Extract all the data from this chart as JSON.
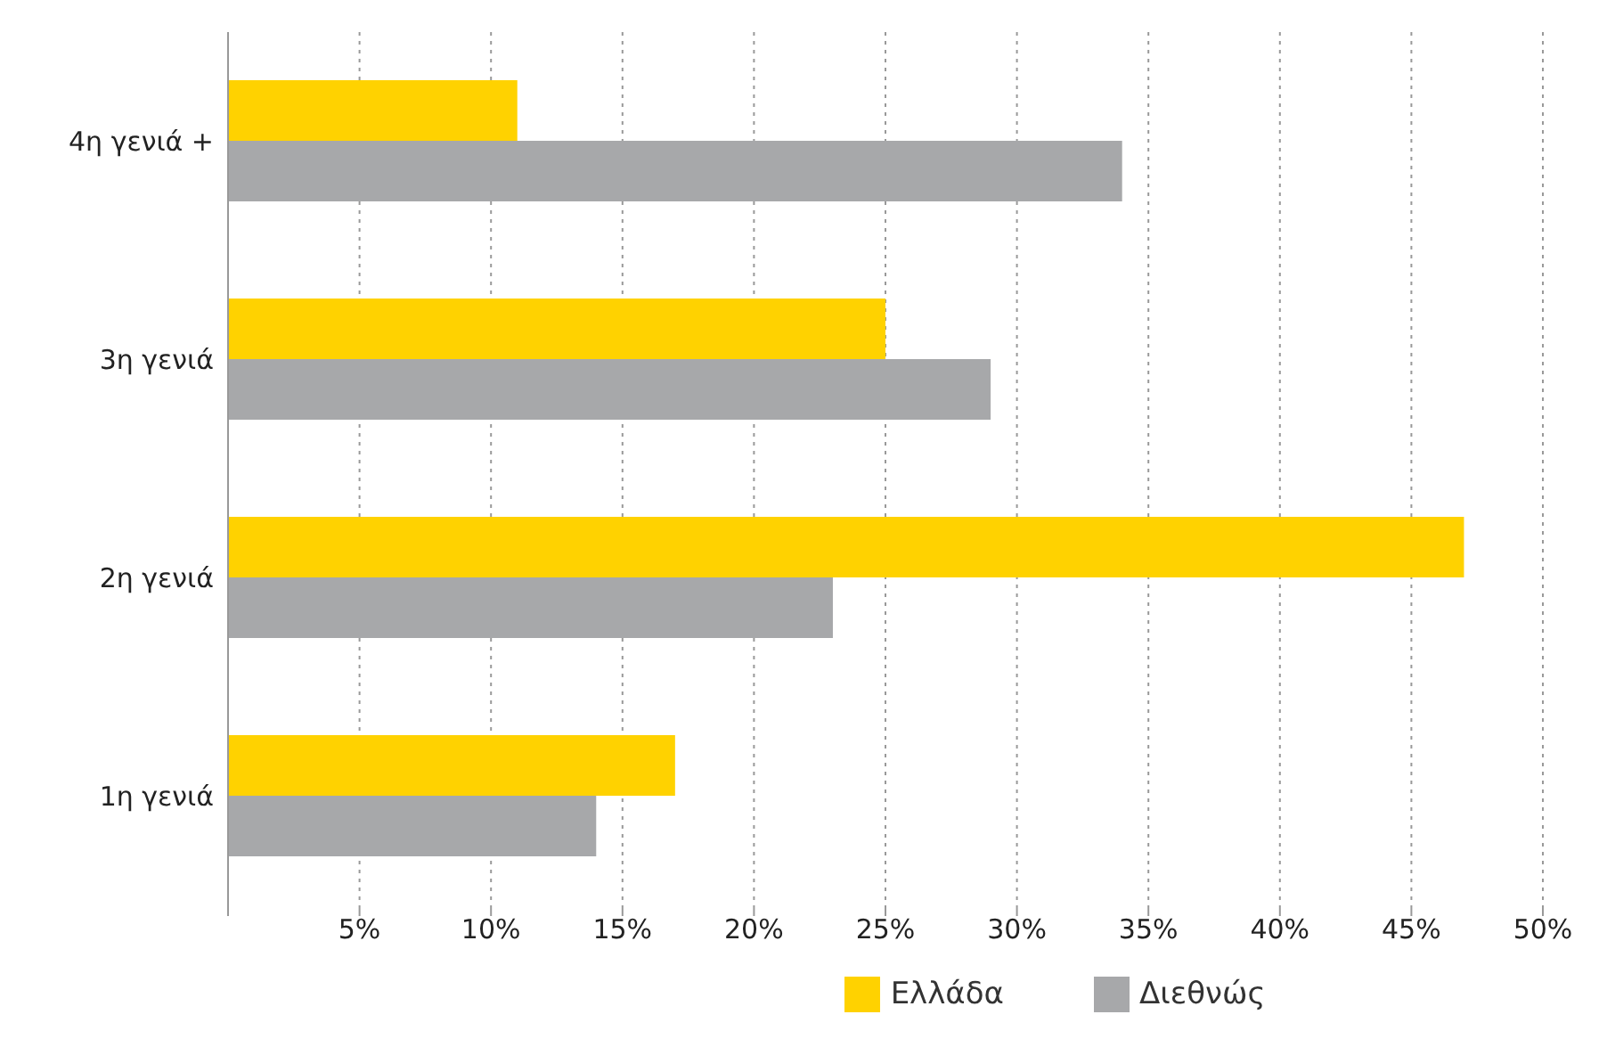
{
  "chart_data": {
    "type": "bar",
    "orientation": "horizontal",
    "categories": [
      "4η γενιά +",
      "3η γενιά",
      "2η γενιά",
      "1η γενιά"
    ],
    "series": [
      {
        "name": "Ελλάδα",
        "color": "#ffd200",
        "values": [
          11,
          25,
          47,
          17
        ]
      },
      {
        "name": "Διεθνώς",
        "color": "#a7a8aa",
        "values": [
          34,
          29,
          23,
          14
        ]
      }
    ],
    "xlim": [
      0,
      50
    ],
    "xticks": [
      {
        "value": 0,
        "label": null
      },
      {
        "value": 5,
        "label": "5%"
      },
      {
        "value": 10,
        "label": "10%"
      },
      {
        "value": 15,
        "label": "15%"
      },
      {
        "value": 20,
        "label": "20%"
      },
      {
        "value": 25,
        "label": "25%"
      },
      {
        "value": 30,
        "label": "30%"
      },
      {
        "value": 35,
        "label": "35%"
      },
      {
        "value": 40,
        "label": "40%"
      },
      {
        "value": 45,
        "label": "45%"
      },
      {
        "value": 50,
        "label": "50%"
      }
    ],
    "grid": "x",
    "legend": "bottom"
  }
}
